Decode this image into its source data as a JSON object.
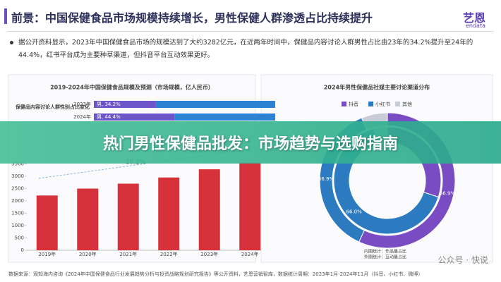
{
  "header": {
    "title": "前景：中国保健食品市场规模持续增长，男性保健人群渗透占比持续提升",
    "logo": "艺恩",
    "logo_sub": "endata"
  },
  "summary": "据公开资料显示，2023年中国保健食品市场的规模达到了大约3282亿元，在近两年时间中，保健品内容讨论人群男性占比由23年的34.2%提升至24年的44.4%，红书平台成为主要种草渠道，但抖音平台互动效果更好。",
  "chart_data": [
    {
      "type": "hbar-stacked",
      "title": "保健品内容讨论人群性别占比变化",
      "categories": [
        "2023年",
        "2024年"
      ],
      "xlim": [
        0,
        100
      ],
      "series": [
        {
          "color": "#6b55c9",
          "values": [
            34.2,
            44.4
          ],
          "value_labels": [
            "男, 34.2%",
            "男, 44.4%"
          ]
        },
        {
          "color": "#2b82d4",
          "values": [
            65.8,
            55.6
          ]
        }
      ]
    },
    {
      "type": "bar",
      "title": "2019-2024年中国保健食品规模及预测（市场规模，亿人民币）",
      "categories": [
        "2019年",
        "2020年",
        "2021年",
        "2022年",
        "2023年",
        "2024年"
      ],
      "values": [
        2220,
        2500,
        2700,
        2950,
        3282,
        3550
      ],
      "color": "#d7313b",
      "ylim": [
        0,
        4000
      ],
      "yticks": [
        0,
        500,
        1000,
        1500,
        2000,
        2500,
        3000,
        3500
      ],
      "annotation": "10.2%"
    },
    {
      "type": "donut",
      "title": "2024年男性保健品社媒主要讨论渠道分布",
      "categories": [
        "抖音",
        "小红书",
        "其他"
      ],
      "colors": [
        "#7a4cc4",
        "#2c7bc0",
        "#c9ccd6"
      ],
      "series": [
        {
          "values": [
            56.9,
            36.9,
            6.2
          ],
          "value_labels": [
            "56.9%",
            "36.9%",
            null
          ]
        },
        {
          "values": [
            30.0,
            66.0,
            4.0
          ],
          "value_labels": [
            null,
            "66.0%",
            null
          ]
        }
      ],
      "notes": [
        "内圈统计：作品量占比",
        "外圈统计：互动量占比"
      ]
    }
  ],
  "banner": "热门男性保健品批发：市场趋势与选购指南",
  "source": "数据来源：观知海内咨询《2024年中国保健食品行业发展趋势分析与投资战略规划研究报告》等公开资料，艺恩营销智库，数据统计周期：2023年1月-2024年11月（抖音、小红书、微博）",
  "watermark": "公众号 · 快说"
}
